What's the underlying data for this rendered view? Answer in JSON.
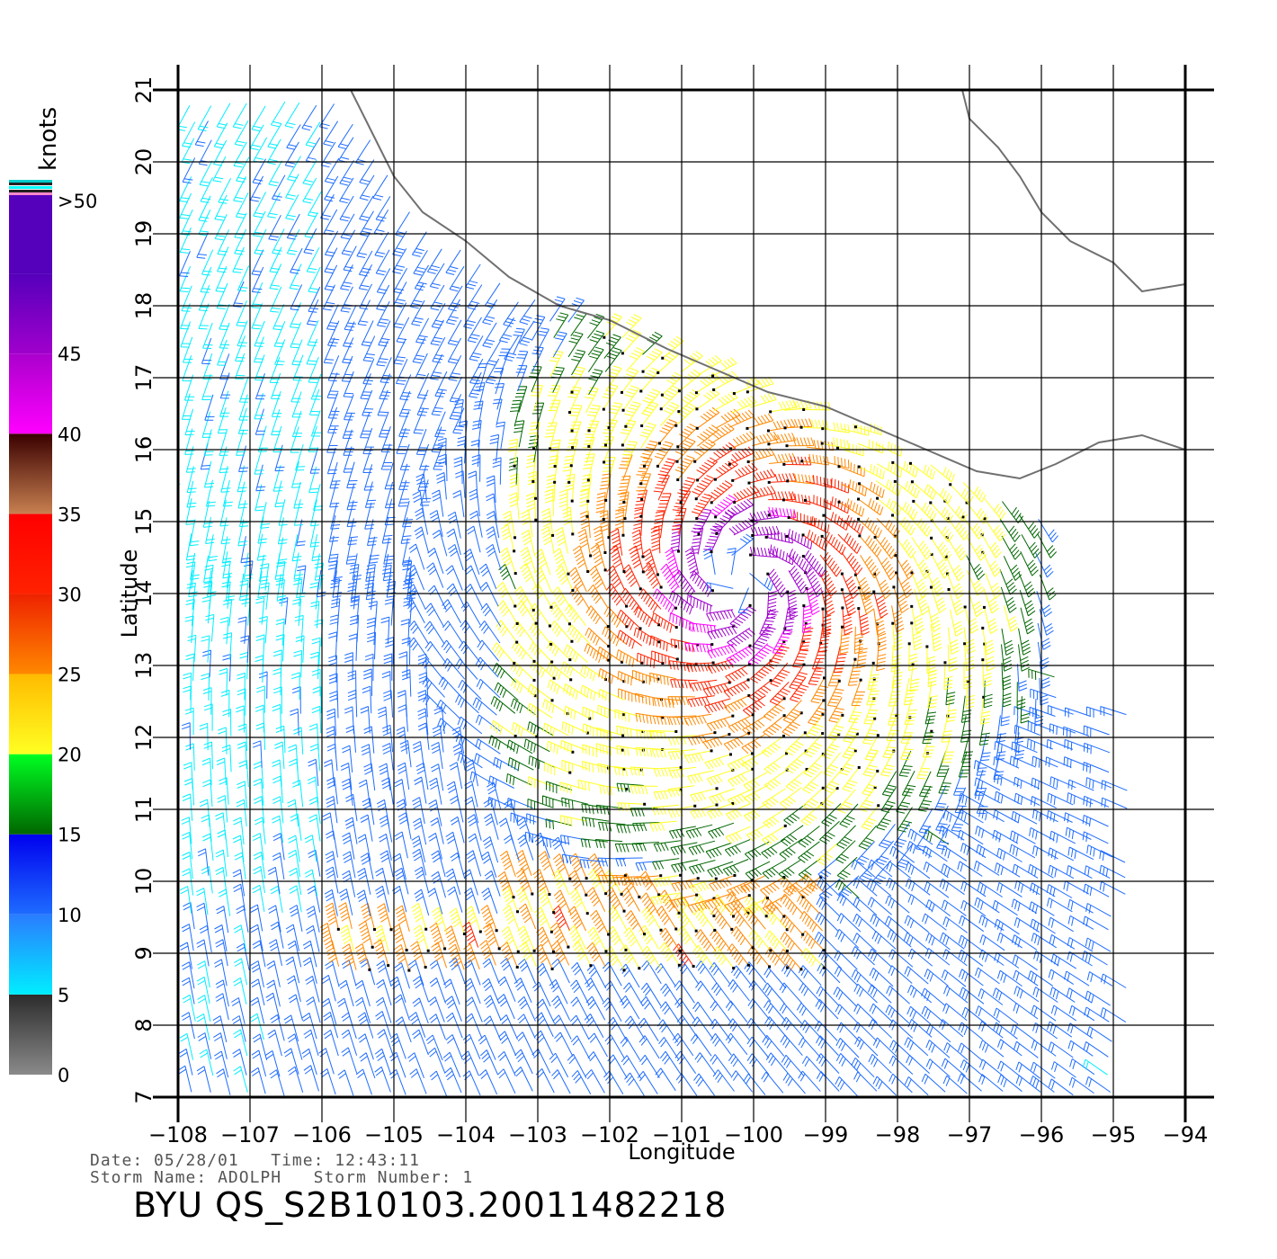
{
  "colorbar": {
    "unit": "knots",
    "stops": [
      {
        "label": "0",
        "from": 0,
        "to": 5,
        "gradient": [
          "#8a8a8a",
          "#2c2c2c"
        ]
      },
      {
        "label": "5",
        "from": 5,
        "to": 10,
        "gradient": [
          "#00eeff",
          "#2a7cff"
        ]
      },
      {
        "label": "10",
        "from": 10,
        "to": 15,
        "gradient": [
          "#1e6cff",
          "#0000ee"
        ]
      },
      {
        "label": "15",
        "from": 15,
        "to": 20,
        "gradient": [
          "#006600",
          "#00ff22"
        ]
      },
      {
        "label": "20",
        "from": 20,
        "to": 25,
        "gradient": [
          "#ffff22",
          "#ffbb00"
        ]
      },
      {
        "label": "25",
        "from": 25,
        "to": 30,
        "gradient": [
          "#ff8800",
          "#ee2200"
        ]
      },
      {
        "label": "30",
        "from": 30,
        "to": 35,
        "gradient": [
          "#ff2200",
          "#ff0000"
        ]
      },
      {
        "label": "35",
        "from": 35,
        "to": 40,
        "gradient": [
          "#c88050",
          "#3a0000"
        ]
      },
      {
        "label": "40",
        "from": 40,
        "to": 45,
        "gradient": [
          "#ff00ff",
          "#aa00cc"
        ]
      },
      {
        "label": "45",
        "from": 45,
        "to": 50,
        "gradient": [
          "#a000cc",
          "#5500bb"
        ]
      },
      {
        "label": ">50",
        "from": 50,
        "to": 55,
        "gradient": [
          "#5500bb",
          "#5500bb"
        ]
      }
    ]
  },
  "map": {
    "xlabel": "Longitude",
    "ylabel": "Latitude",
    "lon_range": [
      -108,
      -94
    ],
    "lat_range": [
      7,
      21
    ],
    "lon_ticks": [
      "−108",
      "−107",
      "−106",
      "−105",
      "−104",
      "−103",
      "−102",
      "−101",
      "−100",
      "−99",
      "−98",
      "−97",
      "−96",
      "−95",
      "−94"
    ],
    "lat_ticks": [
      "7",
      "8",
      "9",
      "10",
      "11",
      "12",
      "13",
      "14",
      "15",
      "16",
      "17",
      "18",
      "19",
      "20",
      "21"
    ],
    "storm_center": {
      "lon": -100.2,
      "lat": 14.2
    },
    "coastline": [
      [
        -105.6,
        21.0
      ],
      [
        -105.4,
        20.6
      ],
      [
        -105.2,
        20.2
      ],
      [
        -105.0,
        19.8
      ],
      [
        -104.6,
        19.3
      ],
      [
        -104.0,
        18.9
      ],
      [
        -103.4,
        18.4
      ],
      [
        -102.7,
        18.0
      ],
      [
        -102.0,
        17.8
      ],
      [
        -101.2,
        17.4
      ],
      [
        -100.5,
        17.1
      ],
      [
        -99.8,
        16.8
      ],
      [
        -99.0,
        16.6
      ],
      [
        -98.3,
        16.3
      ],
      [
        -97.6,
        16.0
      ],
      [
        -96.9,
        15.7
      ],
      [
        -96.3,
        15.6
      ],
      [
        -95.8,
        15.8
      ],
      [
        -95.2,
        16.1
      ],
      [
        -94.6,
        16.2
      ],
      [
        -94.0,
        16.0
      ]
    ],
    "gulf_coast": [
      [
        -97.1,
        21.0
      ],
      [
        -97.0,
        20.6
      ],
      [
        -96.6,
        20.2
      ],
      [
        -96.3,
        19.8
      ],
      [
        -96.0,
        19.3
      ],
      [
        -95.6,
        18.9
      ],
      [
        -95.0,
        18.6
      ],
      [
        -94.6,
        18.2
      ],
      [
        -94.0,
        18.3
      ]
    ]
  },
  "info": {
    "date_label": "Date:",
    "date": "05/28/01",
    "time_label": "Time:",
    "time": "12:43:11",
    "storm_name_label": "Storm Name:",
    "storm_name": "ADOLPH",
    "storm_number_label": "Storm Number:",
    "storm_number": "1",
    "product": "BYU QS_S2B10103.20011482218"
  }
}
